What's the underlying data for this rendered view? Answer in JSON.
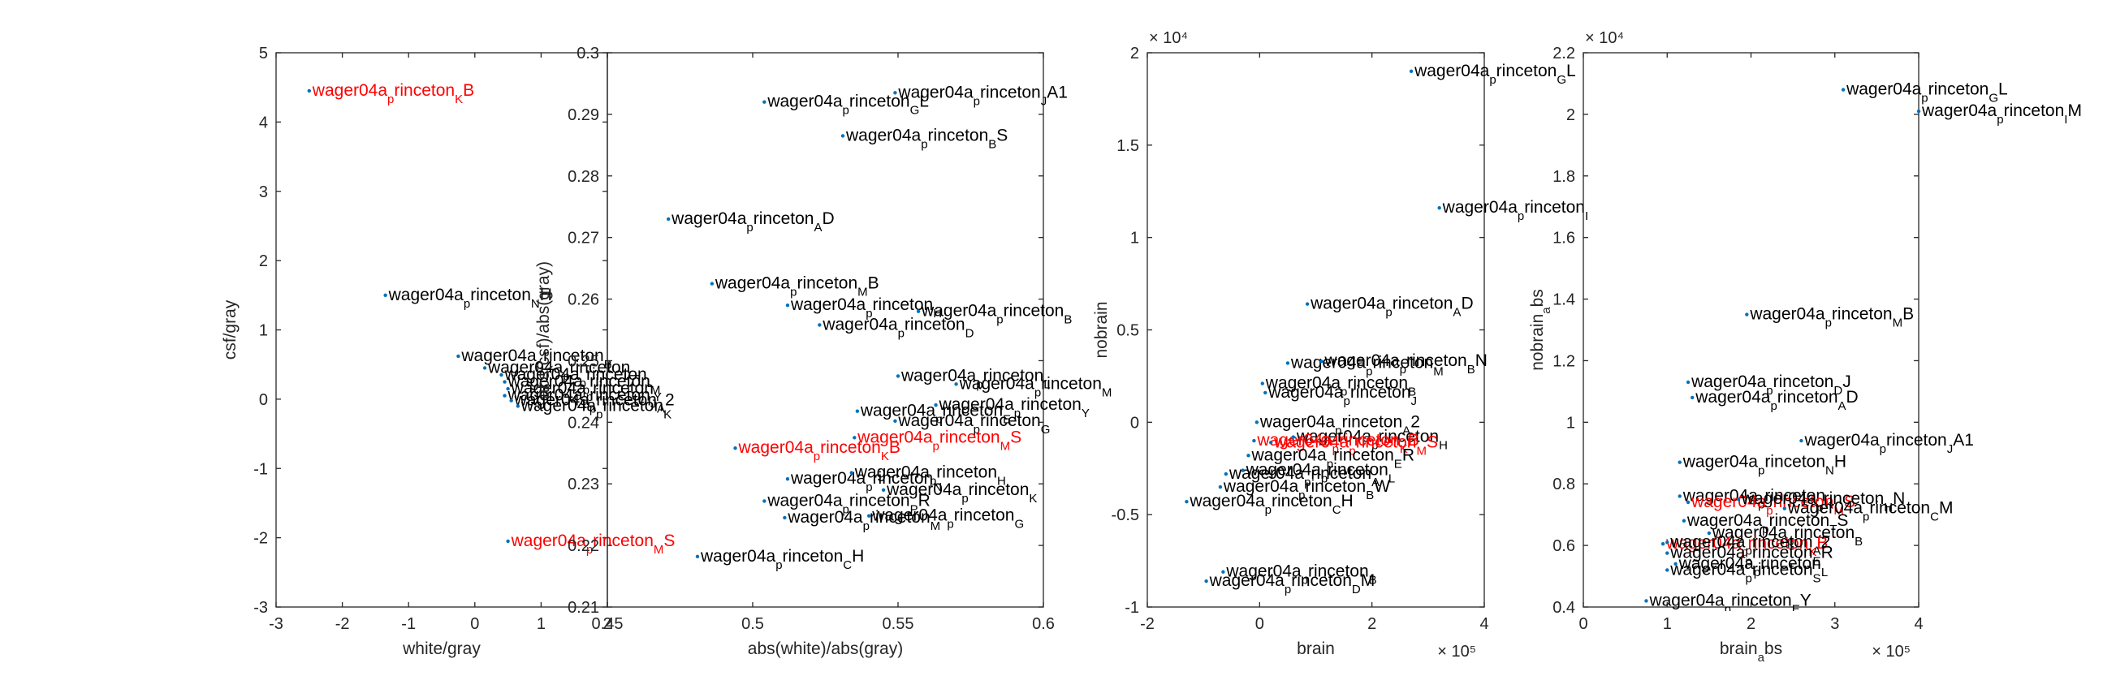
{
  "chart_data": [
    {
      "type": "scatter",
      "xlabel": "white/gray",
      "ylabel": "csf/gray",
      "xlim": [
        -3,
        2
      ],
      "ylim": [
        -3,
        5
      ],
      "xticks": [
        -3,
        -2,
        -1,
        0,
        1,
        2
      ],
      "yticks": [
        -3,
        -2,
        -1,
        0,
        1,
        2,
        3,
        4,
        5
      ],
      "xticks_labels": [
        "-3",
        "-2",
        "-1",
        "0",
        "1",
        "2"
      ],
      "yticks_labels": [
        "-3",
        "-2",
        "-1",
        "0",
        "1",
        "2",
        "3",
        "4",
        "5"
      ],
      "x_exponent": "",
      "y_exponent": "",
      "points": [
        {
          "label": "wager04a_princeton_KB",
          "x": -2.5,
          "y": 4.45,
          "outlier": true
        },
        {
          "label": "wager04a_princeton_NH",
          "x": -1.35,
          "y": 1.5,
          "outlier": false
        },
        {
          "label": "wager04a_princeton_B",
          "x": -0.25,
          "y": 0.62,
          "outlier": false
        },
        {
          "label": "wager04a_princeton_",
          "x": 0.15,
          "y": 0.45,
          "outlier": false
        },
        {
          "label": "wager04a_princeton_L",
          "x": 0.4,
          "y": 0.35,
          "outlier": false
        },
        {
          "label": "wager04a_princeton_M",
          "x": 0.45,
          "y": 0.25,
          "outlier": false
        },
        {
          "label": "wager04a_princeton_Y",
          "x": 0.5,
          "y": 0.15,
          "outlier": false
        },
        {
          "label": "wager04a_princeton_J",
          "x": 0.45,
          "y": 0.05,
          "outlier": false
        },
        {
          "label": "wager04a_princeton_A2",
          "x": 0.55,
          "y": -0.02,
          "outlier": false
        },
        {
          "label": "wager04a_princeton_K",
          "x": 0.65,
          "y": -0.1,
          "outlier": false
        },
        {
          "label": "wager04a_princeton_MS",
          "x": 0.5,
          "y": -2.05,
          "outlier": true
        }
      ]
    },
    {
      "type": "scatter",
      "xlabel": "abs(white)/abs(gray)",
      "ylabel": "abs(csf)/abs(gray)",
      "xlim": [
        0.45,
        0.6
      ],
      "ylim": [
        0.21,
        0.3
      ],
      "xticks": [
        0.45,
        0.5,
        0.55,
        0.6
      ],
      "yticks": [
        0.21,
        0.22,
        0.23,
        0.24,
        0.25,
        0.26,
        0.27,
        0.28,
        0.29,
        0.3
      ],
      "xticks_labels": [
        "0.45",
        "0.5",
        "0.55",
        "0.6"
      ],
      "yticks_labels": [
        "0.21",
        "0.22",
        "0.23",
        "0.24",
        "0.25",
        "0.26",
        "0.27",
        "0.28",
        "0.29",
        "0.3"
      ],
      "x_exponent": "",
      "y_exponent": "",
      "points": [
        {
          "label": "wager04a_princeton_JA1",
          "x": 0.549,
          "y": 0.2935,
          "outlier": false
        },
        {
          "label": "wager04a_princeton_GL",
          "x": 0.504,
          "y": 0.292,
          "outlier": false
        },
        {
          "label": "wager04a_princeton_BS",
          "x": 0.531,
          "y": 0.2865,
          "outlier": false
        },
        {
          "label": "wager04a_princeton_AD",
          "x": 0.471,
          "y": 0.273,
          "outlier": false
        },
        {
          "label": "wager04a_princeton_MB",
          "x": 0.486,
          "y": 0.2625,
          "outlier": false
        },
        {
          "label": "wager04a_princeton_H",
          "x": 0.512,
          "y": 0.259,
          "outlier": false
        },
        {
          "label": "wager04a_princeton_B",
          "x": 0.557,
          "y": 0.258,
          "outlier": false
        },
        {
          "label": "wager04a_princeton_D",
          "x": 0.523,
          "y": 0.2558,
          "outlier": false
        },
        {
          "label": "wager04a_princeton_L",
          "x": 0.55,
          "y": 0.2475,
          "outlier": false
        },
        {
          "label": "wager04a_princeton_M",
          "x": 0.57,
          "y": 0.2462,
          "outlier": false
        },
        {
          "label": "wager04a_princeton_Y",
          "x": 0.563,
          "y": 0.2428,
          "outlier": false
        },
        {
          "label": "wager04a_princeton_E",
          "x": 0.536,
          "y": 0.2418,
          "outlier": false
        },
        {
          "label": "wager04a_princeton_G",
          "x": 0.549,
          "y": 0.2402,
          "outlier": false
        },
        {
          "label": "wager04a_princeton_MS",
          "x": 0.535,
          "y": 0.2375,
          "outlier": true
        },
        {
          "label": "wager04a_princeton_KB",
          "x": 0.494,
          "y": 0.2358,
          "outlier": true
        },
        {
          "label": "wager04a_princeton_H",
          "x": 0.534,
          "y": 0.2318,
          "outlier": false
        },
        {
          "label": "wager04a_princeton_N",
          "x": 0.512,
          "y": 0.2308,
          "outlier": false
        },
        {
          "label": "wager04a_princeton_K",
          "x": 0.545,
          "y": 0.229,
          "outlier": false
        },
        {
          "label": "wager04a_princeton_PR",
          "x": 0.504,
          "y": 0.2272,
          "outlier": false
        },
        {
          "label": "wager04a_princeton_G",
          "x": 0.54,
          "y": 0.2248,
          "outlier": false
        },
        {
          "label": "wager04a_princeton_M",
          "x": 0.511,
          "y": 0.2245,
          "outlier": false
        },
        {
          "label": "wager04a_princeton_CH",
          "x": 0.481,
          "y": 0.2182,
          "outlier": false
        }
      ]
    },
    {
      "type": "scatter",
      "xlabel": "brain",
      "ylabel": "nobrain",
      "xlim": [
        -200000,
        400000
      ],
      "ylim": [
        -10000,
        20000
      ],
      "xticks": [
        -200000,
        0,
        200000,
        400000
      ],
      "yticks": [
        -10000,
        -5000,
        0,
        5000,
        10000,
        15000,
        20000
      ],
      "xticks_labels": [
        "-2",
        "0",
        "2",
        "4"
      ],
      "yticks_labels": [
        "-1",
        "-0.5",
        "0",
        "0.5",
        "1",
        "1.5",
        "2"
      ],
      "x_exponent": "× 10⁵",
      "y_exponent": "× 10⁴",
      "points": [
        {
          "label": "wager04a_princeton_GL",
          "x": 270000,
          "y": 19000,
          "outlier": false
        },
        {
          "label": "wager04a_princeton_I",
          "x": 320000,
          "y": 11600,
          "outlier": false
        },
        {
          "label": "wager04a_princeton_AD",
          "x": 85000,
          "y": 6400,
          "outlier": false
        },
        {
          "label": "wager04a_princeton_BN",
          "x": 110000,
          "y": 3300,
          "outlier": false
        },
        {
          "label": "wager04a_princeton_M",
          "x": 50000,
          "y": 3200,
          "outlier": false
        },
        {
          "label": "wager04a_princeton_B",
          "x": 5000,
          "y": 2100,
          "outlier": false
        },
        {
          "label": "wager04a_princeton_J",
          "x": 10000,
          "y": 1600,
          "outlier": false
        },
        {
          "label": "wager04a_princeton_A2",
          "x": -5000,
          "y": 0,
          "outlier": false
        },
        {
          "label": "wager04a_princeton_H",
          "x": 60000,
          "y": -800,
          "outlier": false
        },
        {
          "label": "wager04a_princeton_KB",
          "x": -10000,
          "y": -1000,
          "outlier": true
        },
        {
          "label": "wager04a_princeton_MS",
          "x": 20000,
          "y": -1100,
          "outlier": true
        },
        {
          "label": "wager04a_princeton_ER",
          "x": -20000,
          "y": -1800,
          "outlier": false
        },
        {
          "label": "wager04a_princeton_L",
          "x": -30000,
          "y": -2600,
          "outlier": false
        },
        {
          "label": "wager04a_princeton_A",
          "x": -60000,
          "y": -2800,
          "outlier": false
        },
        {
          "label": "wager04a_princeton_BW",
          "x": -70000,
          "y": -3500,
          "outlier": false
        },
        {
          "label": "wager04a_princeton_CH",
          "x": -130000,
          "y": -4300,
          "outlier": false
        },
        {
          "label": "wager04a_princeton_B",
          "x": -65000,
          "y": -8100,
          "outlier": false
        },
        {
          "label": "wager04a_princeton_DM",
          "x": -95000,
          "y": -8600,
          "outlier": false
        }
      ]
    },
    {
      "type": "scatter",
      "xlabel": "brain_abs",
      "ylabel": "nobrain_abs",
      "xlim": [
        0,
        400000
      ],
      "ylim": [
        4000,
        22000
      ],
      "xticks": [
        0,
        100000,
        200000,
        300000,
        400000
      ],
      "yticks": [
        4000,
        6000,
        8000,
        10000,
        12000,
        14000,
        16000,
        18000,
        20000,
        22000
      ],
      "xticks_labels": [
        "0",
        "1",
        "2",
        "3",
        "4"
      ],
      "yticks_labels": [
        "0.4",
        "0.6",
        "0.8",
        "1",
        "1.2",
        "1.4",
        "1.6",
        "1.8",
        "2",
        "2.2"
      ],
      "x_exponent": "× 10⁵",
      "y_exponent": "× 10⁴",
      "points": [
        {
          "label": "wager04a_princeton_GL",
          "x": 310000,
          "y": 20800,
          "outlier": false
        },
        {
          "label": "wager04a_princeton_IM",
          "x": 400000,
          "y": 20100,
          "outlier": false
        },
        {
          "label": "wager04a_princeton_MB",
          "x": 195000,
          "y": 13500,
          "outlier": false
        },
        {
          "label": "wager04a_princeton_DJ",
          "x": 125000,
          "y": 11300,
          "outlier": false
        },
        {
          "label": "wager04a_princeton_AD",
          "x": 130000,
          "y": 10800,
          "outlier": false
        },
        {
          "label": "wager04a_princeton_JA1",
          "x": 260000,
          "y": 9400,
          "outlier": false
        },
        {
          "label": "wager04a_princeton_NH",
          "x": 115000,
          "y": 8700,
          "outlier": false
        },
        {
          "label": "wager04a_princeton_K",
          "x": 115000,
          "y": 7600,
          "outlier": false
        },
        {
          "label": "wager04a_princeton_MS",
          "x": 125000,
          "y": 7400,
          "outlier": true
        },
        {
          "label": "wager04a_princeton_HN",
          "x": 185000,
          "y": 7500,
          "outlier": false
        },
        {
          "label": "wager04a_princeton_CM",
          "x": 240000,
          "y": 7200,
          "outlier": false
        },
        {
          "label": "wager04a_princeton_TS",
          "x": 120000,
          "y": 6800,
          "outlier": false
        },
        {
          "label": "wager04a_princeton_B",
          "x": 150000,
          "y": 6400,
          "outlier": false
        },
        {
          "label": "wager04a_princeton_KB",
          "x": 95000,
          "y": 6050,
          "outlier": true
        },
        {
          "label": "wager04a_princeton_A2",
          "x": 100000,
          "y": 6100,
          "outlier": false
        },
        {
          "label": "wager04a_princeton_ER",
          "x": 100000,
          "y": 5750,
          "outlier": false
        },
        {
          "label": "wager04a_princeton_L",
          "x": 110000,
          "y": 5400,
          "outlier": false
        },
        {
          "label": "wager04a_princeton_S",
          "x": 100000,
          "y": 5200,
          "outlier": false
        },
        {
          "label": "wager04a_princeton_EY",
          "x": 75000,
          "y": 4200,
          "outlier": false
        }
      ]
    }
  ],
  "colors": {
    "normal": "#000000",
    "outlier": "#ff0000",
    "marker": "#0072bd",
    "axis": "#262626"
  }
}
